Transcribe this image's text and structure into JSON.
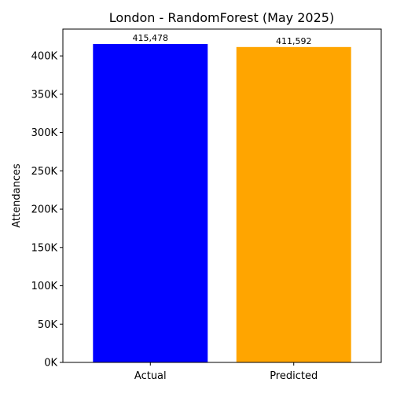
{
  "chart_data": {
    "type": "bar",
    "title": "London - RandomForest (May 2025)",
    "xlabel": "",
    "ylabel": "Attendances",
    "categories": [
      "Actual",
      "Predicted"
    ],
    "values": [
      415478,
      411592
    ],
    "value_labels": [
      "415,478",
      "411,592"
    ],
    "colors": [
      "#0000ff",
      "#ffa500"
    ],
    "ylim": [
      0,
      435000
    ],
    "yticks": [
      0,
      50000,
      100000,
      150000,
      200000,
      250000,
      300000,
      350000,
      400000
    ],
    "ytick_labels": [
      "0K",
      "50K",
      "100K",
      "150K",
      "200K",
      "250K",
      "300K",
      "350K",
      "400K"
    ],
    "grid": false,
    "legend": false
  }
}
